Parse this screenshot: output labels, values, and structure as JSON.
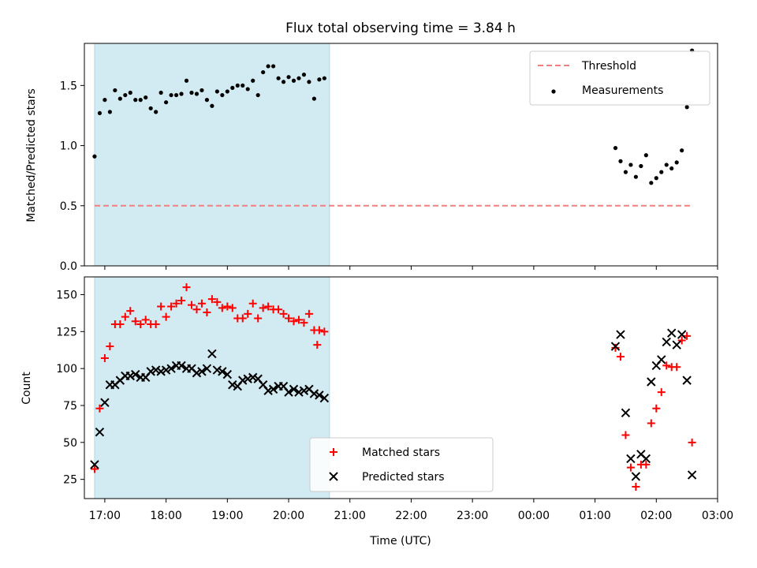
{
  "chart_data": [
    {
      "type": "scatter",
      "title": "Flux total observing time = 3.84 h",
      "ylabel": "Matched/Predicted stars",
      "ylim": [
        0,
        1.85
      ],
      "yticks": [
        "0.0",
        "0.5",
        "1.0",
        "1.5"
      ],
      "xlim": [
        "16:40",
        "03:00"
      ],
      "highlight_span": [
        "16:50",
        "20:40"
      ],
      "highlight_color": "#add8e6",
      "legend_position": "upper right",
      "threshold": {
        "name": "Threshold",
        "value": 0.5,
        "x_start": "16:50",
        "x_end": "02:35",
        "color": "#f08080",
        "style": "dashed"
      },
      "series": [
        {
          "name": "Measurements",
          "color": "#000000",
          "marker": "dot",
          "points": [
            [
              "16:50",
              0.91
            ],
            [
              "16:55",
              1.27
            ],
            [
              "17:00",
              1.38
            ],
            [
              "17:05",
              1.28
            ],
            [
              "17:10",
              1.46
            ],
            [
              "17:15",
              1.39
            ],
            [
              "17:20",
              1.42
            ],
            [
              "17:25",
              1.44
            ],
            [
              "17:30",
              1.38
            ],
            [
              "17:35",
              1.38
            ],
            [
              "17:40",
              1.4
            ],
            [
              "17:45",
              1.31
            ],
            [
              "17:50",
              1.28
            ],
            [
              "17:55",
              1.44
            ],
            [
              "18:00",
              1.36
            ],
            [
              "18:05",
              1.42
            ],
            [
              "18:10",
              1.42
            ],
            [
              "18:15",
              1.43
            ],
            [
              "18:20",
              1.54
            ],
            [
              "18:25",
              1.44
            ],
            [
              "18:30",
              1.43
            ],
            [
              "18:35",
              1.46
            ],
            [
              "18:40",
              1.38
            ],
            [
              "18:45",
              1.33
            ],
            [
              "18:50",
              1.45
            ],
            [
              "18:55",
              1.42
            ],
            [
              "19:00",
              1.45
            ],
            [
              "19:05",
              1.48
            ],
            [
              "19:10",
              1.5
            ],
            [
              "19:15",
              1.5
            ],
            [
              "19:20",
              1.47
            ],
            [
              "19:25",
              1.54
            ],
            [
              "19:30",
              1.42
            ],
            [
              "19:35",
              1.61
            ],
            [
              "19:40",
              1.66
            ],
            [
              "19:45",
              1.66
            ],
            [
              "19:50",
              1.56
            ],
            [
              "19:55",
              1.53
            ],
            [
              "20:00",
              1.57
            ],
            [
              "20:05",
              1.54
            ],
            [
              "20:10",
              1.56
            ],
            [
              "20:15",
              1.59
            ],
            [
              "20:20",
              1.53
            ],
            [
              "20:25",
              1.39
            ],
            [
              "20:30",
              1.55
            ],
            [
              "20:35",
              1.56
            ],
            [
              "01:20",
              0.98
            ],
            [
              "01:25",
              0.87
            ],
            [
              "01:30",
              0.78
            ],
            [
              "01:35",
              0.84
            ],
            [
              "01:40",
              0.74
            ],
            [
              "01:45",
              0.83
            ],
            [
              "01:50",
              0.92
            ],
            [
              "01:55",
              0.69
            ],
            [
              "02:00",
              0.73
            ],
            [
              "02:05",
              0.78
            ],
            [
              "02:10",
              0.84
            ],
            [
              "02:15",
              0.81
            ],
            [
              "02:20",
              0.86
            ],
            [
              "02:25",
              0.96
            ],
            [
              "02:30",
              1.32
            ],
            [
              "02:35",
              1.79
            ]
          ]
        }
      ]
    },
    {
      "type": "scatter",
      "xlabel": "Time (UTC)",
      "ylabel": "Count",
      "ylim": [
        12,
        162
      ],
      "yticks": [
        "25",
        "50",
        "75",
        "100",
        "125",
        "150"
      ],
      "xlim": [
        "16:40",
        "03:00"
      ],
      "xticks": [
        "17:00",
        "18:00",
        "19:00",
        "20:00",
        "21:00",
        "22:00",
        "23:00",
        "00:00",
        "01:00",
        "02:00",
        "03:00"
      ],
      "highlight_span": [
        "16:50",
        "20:40"
      ],
      "highlight_color": "#add8e6",
      "legend_position": "lower center",
      "series": [
        {
          "name": "Matched stars",
          "color": "#ff0000",
          "marker": "plus",
          "points": [
            [
              "16:50",
              32
            ],
            [
              "16:55",
              73
            ],
            [
              "17:00",
              107
            ],
            [
              "17:05",
              115
            ],
            [
              "17:10",
              130
            ],
            [
              "17:15",
              130
            ],
            [
              "17:20",
              135
            ],
            [
              "17:25",
              139
            ],
            [
              "17:30",
              132
            ],
            [
              "17:35",
              130
            ],
            [
              "17:40",
              133
            ],
            [
              "17:45",
              130
            ],
            [
              "17:50",
              130
            ],
            [
              "17:55",
              142
            ],
            [
              "18:00",
              135
            ],
            [
              "18:05",
              142
            ],
            [
              "18:10",
              144
            ],
            [
              "18:15",
              146
            ],
            [
              "18:20",
              155
            ],
            [
              "18:25",
              143
            ],
            [
              "18:30",
              140
            ],
            [
              "18:35",
              144
            ],
            [
              "18:40",
              138
            ],
            [
              "18:45",
              147
            ],
            [
              "18:50",
              145
            ],
            [
              "18:55",
              141
            ],
            [
              "19:00",
              142
            ],
            [
              "19:05",
              141
            ],
            [
              "19:10",
              134
            ],
            [
              "19:15",
              134
            ],
            [
              "19:20",
              137
            ],
            [
              "19:25",
              144
            ],
            [
              "19:30",
              134
            ],
            [
              "19:35",
              141
            ],
            [
              "19:40",
              142
            ],
            [
              "19:45",
              140
            ],
            [
              "19:50",
              140
            ],
            [
              "19:55",
              137
            ],
            [
              "20:00",
              134
            ],
            [
              "20:05",
              132
            ],
            [
              "20:10",
              133
            ],
            [
              "20:15",
              131
            ],
            [
              "20:20",
              137
            ],
            [
              "20:25",
              126
            ],
            [
              "20:28",
              116
            ],
            [
              "20:30",
              126
            ],
            [
              "20:35",
              125
            ],
            [
              "01:20",
              114
            ],
            [
              "01:25",
              108
            ],
            [
              "01:30",
              55
            ],
            [
              "01:35",
              33
            ],
            [
              "01:40",
              20
            ],
            [
              "01:45",
              35
            ],
            [
              "01:50",
              35
            ],
            [
              "01:55",
              63
            ],
            [
              "02:00",
              73
            ],
            [
              "02:05",
              84
            ],
            [
              "02:10",
              102
            ],
            [
              "02:15",
              101
            ],
            [
              "02:20",
              101
            ],
            [
              "02:25",
              119
            ],
            [
              "02:30",
              122
            ],
            [
              "02:35",
              50
            ]
          ]
        },
        {
          "name": "Predicted stars",
          "color": "#000000",
          "marker": "x",
          "points": [
            [
              "16:50",
              35
            ],
            [
              "16:55",
              57
            ],
            [
              "17:00",
              77
            ],
            [
              "17:05",
              89
            ],
            [
              "17:10",
              89
            ],
            [
              "17:15",
              92
            ],
            [
              "17:20",
              95
            ],
            [
              "17:25",
              95
            ],
            [
              "17:30",
              96
            ],
            [
              "17:35",
              94
            ],
            [
              "17:40",
              94
            ],
            [
              "17:45",
              98
            ],
            [
              "17:50",
              99
            ],
            [
              "17:55",
              98
            ],
            [
              "18:00",
              99
            ],
            [
              "18:05",
              100
            ],
            [
              "18:10",
              102
            ],
            [
              "18:15",
              102
            ],
            [
              "18:20",
              100
            ],
            [
              "18:25",
              100
            ],
            [
              "18:30",
              97
            ],
            [
              "18:35",
              98
            ],
            [
              "18:40",
              100
            ],
            [
              "18:45",
              110
            ],
            [
              "18:50",
              99
            ],
            [
              "18:55",
              98
            ],
            [
              "19:00",
              96
            ],
            [
              "19:05",
              89
            ],
            [
              "19:10",
              88
            ],
            [
              "19:15",
              92
            ],
            [
              "19:20",
              93
            ],
            [
              "19:25",
              94
            ],
            [
              "19:30",
              93
            ],
            [
              "19:35",
              89
            ],
            [
              "19:40",
              85
            ],
            [
              "19:45",
              86
            ],
            [
              "19:50",
              88
            ],
            [
              "19:55",
              88
            ],
            [
              "20:00",
              84
            ],
            [
              "20:05",
              86
            ],
            [
              "20:10",
              84
            ],
            [
              "20:15",
              85
            ],
            [
              "20:20",
              86
            ],
            [
              "20:25",
              83
            ],
            [
              "20:30",
              82
            ],
            [
              "20:35",
              80
            ],
            [
              "01:20",
              115
            ],
            [
              "01:25",
              123
            ],
            [
              "01:30",
              70
            ],
            [
              "01:35",
              39
            ],
            [
              "01:40",
              27
            ],
            [
              "01:45",
              42
            ],
            [
              "01:50",
              39
            ],
            [
              "01:55",
              91
            ],
            [
              "02:00",
              102
            ],
            [
              "02:05",
              106
            ],
            [
              "02:10",
              118
            ],
            [
              "02:15",
              124
            ],
            [
              "02:20",
              116
            ],
            [
              "02:25",
              123
            ],
            [
              "02:30",
              92
            ],
            [
              "02:35",
              28
            ]
          ]
        }
      ]
    }
  ]
}
